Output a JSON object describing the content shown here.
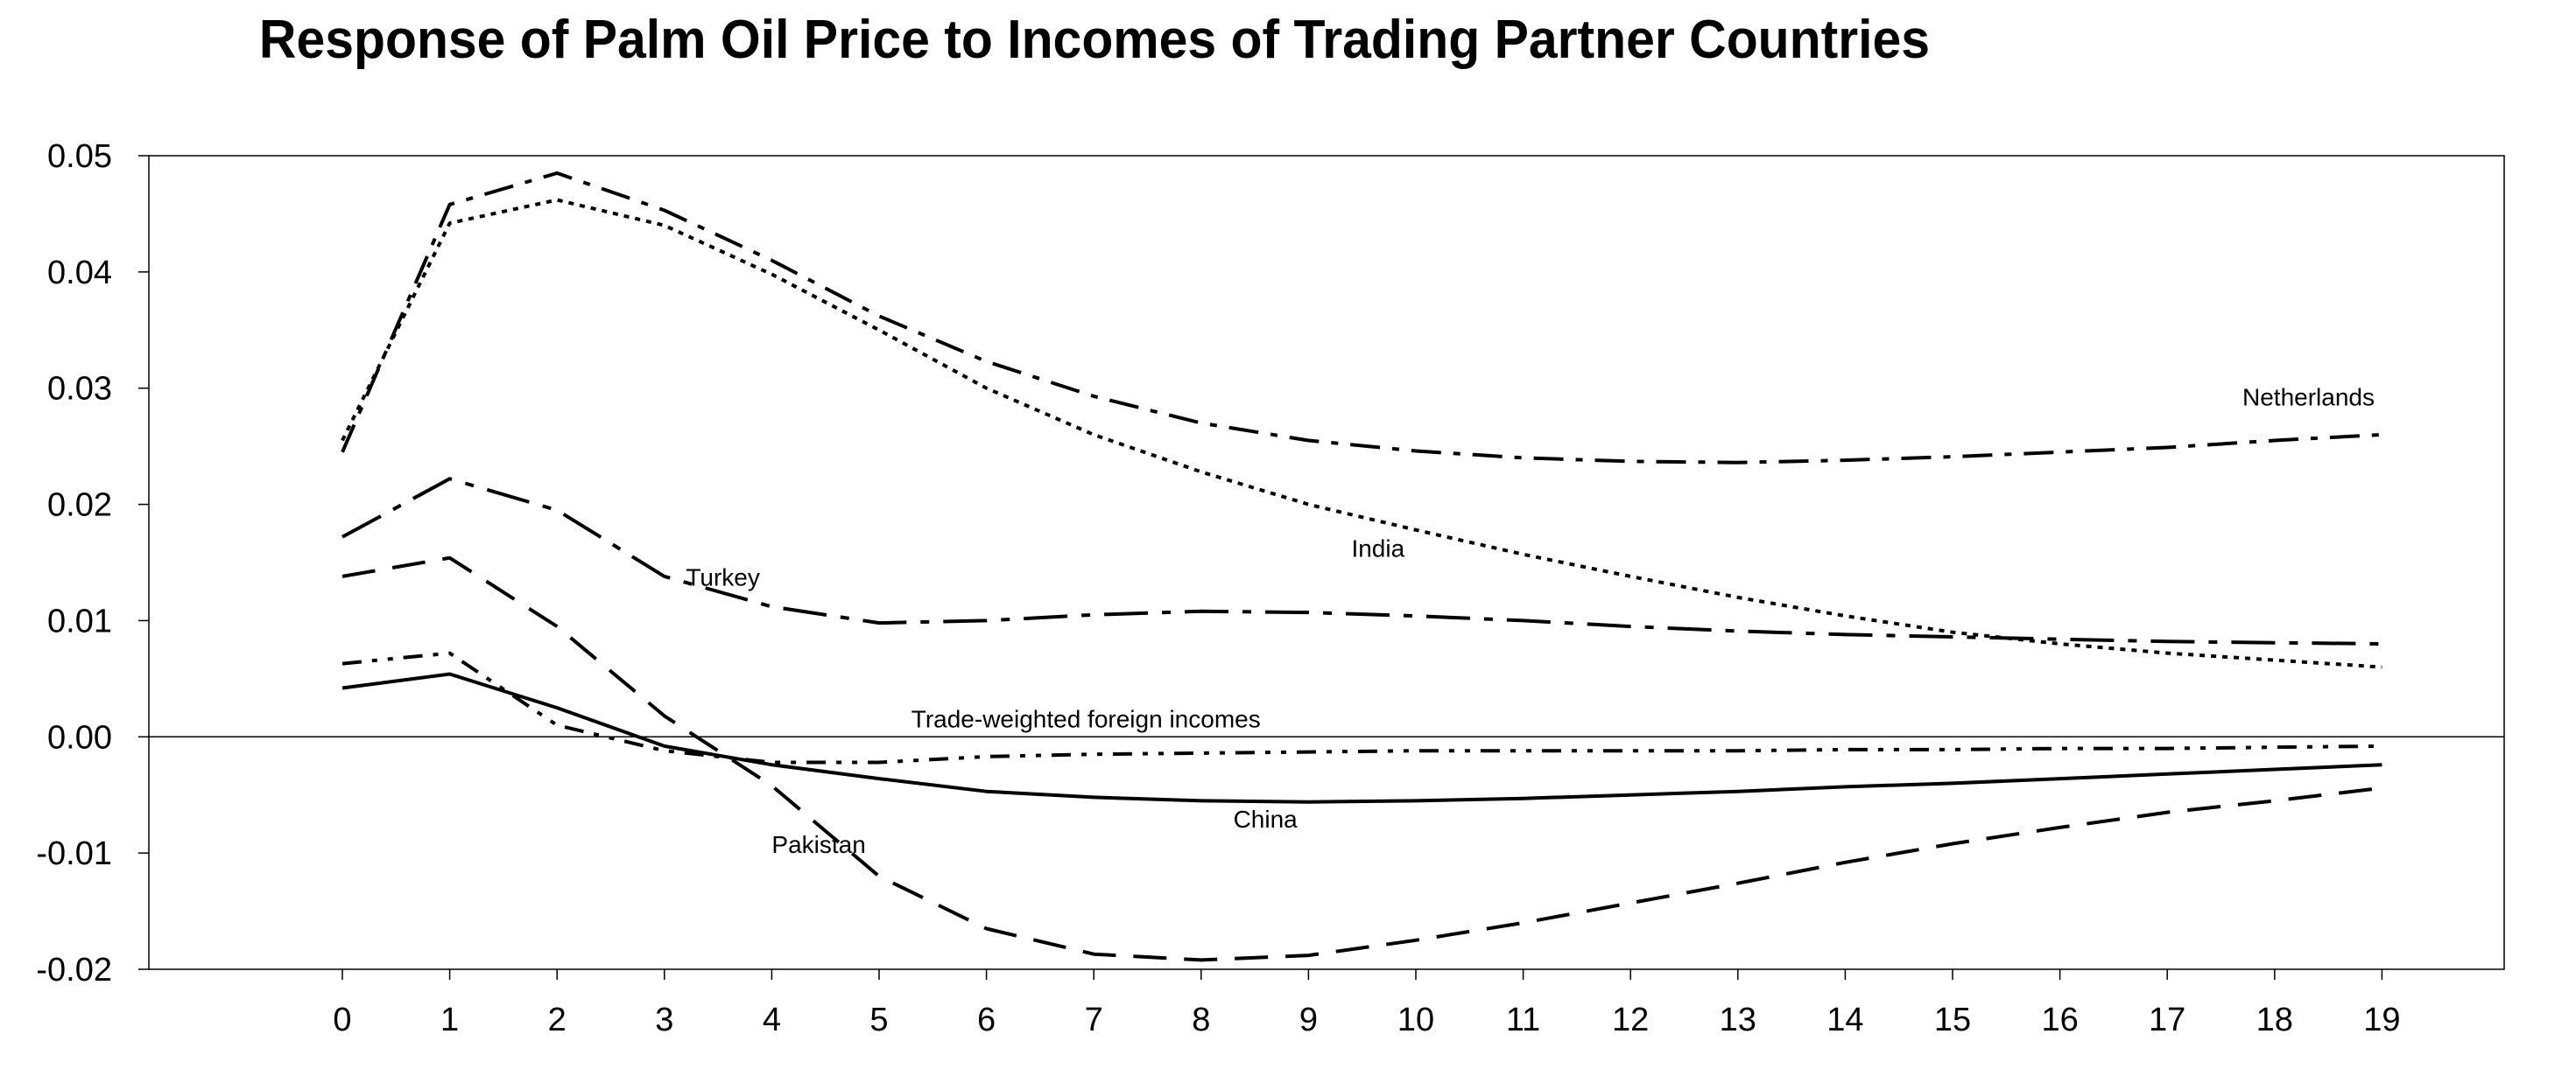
{
  "chart_data": {
    "type": "line",
    "title": "Response of Palm Oil Price to Incomes of Trading Partner Countries",
    "xlabel": "",
    "ylabel": "",
    "x": [
      0,
      1,
      2,
      3,
      4,
      5,
      6,
      7,
      8,
      9,
      10,
      11,
      12,
      13,
      14,
      15,
      16,
      17,
      18,
      19
    ],
    "ylim": [
      -0.02,
      0.05
    ],
    "yticks": [
      0.05,
      0.04,
      0.03,
      0.02,
      0.01,
      0.0,
      -0.01,
      -0.02
    ],
    "ytick_labels": [
      "0.05",
      "0.04",
      "0.03",
      "0.02",
      "0.01",
      "0.00",
      "-0.01",
      "-0.02"
    ],
    "xtick_labels": [
      "0",
      "1",
      "2",
      "3",
      "4",
      "5",
      "6",
      "7",
      "8",
      "9",
      "10",
      "11",
      "12",
      "13",
      "14",
      "15",
      "16",
      "17",
      "18",
      "19"
    ],
    "grid": false,
    "zero_line": true,
    "series": [
      {
        "name": "Netherlands",
        "style": "dash-dot",
        "values": [
          0.0245,
          0.0458,
          0.0485,
          0.0453,
          0.041,
          0.0362,
          0.0323,
          0.0293,
          0.027,
          0.0255,
          0.0246,
          0.024,
          0.0237,
          0.0236,
          0.0238,
          0.0241,
          0.0245,
          0.0249,
          0.0255,
          0.026
        ]
      },
      {
        "name": "India",
        "style": "dotted",
        "values": [
          0.0255,
          0.0442,
          0.0462,
          0.044,
          0.0398,
          0.035,
          0.03,
          0.026,
          0.0228,
          0.02,
          0.0178,
          0.0157,
          0.0138,
          0.012,
          0.0104,
          0.009,
          0.008,
          0.0072,
          0.0066,
          0.006
        ]
      },
      {
        "name": "Turkey",
        "style": "long-dash-dot",
        "values": [
          0.0172,
          0.0222,
          0.0195,
          0.0138,
          0.0112,
          0.0098,
          0.01,
          0.0105,
          0.0108,
          0.0107,
          0.0104,
          0.01,
          0.0095,
          0.0091,
          0.0088,
          0.0086,
          0.0084,
          0.0082,
          0.0081,
          0.008
        ]
      },
      {
        "name": "Pakistan",
        "style": "dashed",
        "values": [
          0.0138,
          0.0154,
          0.0095,
          0.0018,
          -0.0042,
          -0.012,
          -0.0165,
          -0.0187,
          -0.0192,
          -0.0188,
          -0.0175,
          -0.016,
          -0.0143,
          -0.0126,
          -0.0108,
          -0.0092,
          -0.0078,
          -0.0065,
          -0.0055,
          -0.0044
        ]
      },
      {
        "name": "Trade-weighted foreign incomes",
        "style": "dash-dot-dot",
        "values": [
          0.0063,
          0.0072,
          0.001,
          -0.0012,
          -0.0022,
          -0.0022,
          -0.0017,
          -0.0015,
          -0.0014,
          -0.0013,
          -0.0012,
          -0.0012,
          -0.0012,
          -0.0012,
          -0.0011,
          -0.0011,
          -0.001,
          -0.001,
          -0.0009,
          -0.0008
        ]
      },
      {
        "name": "China",
        "style": "solid",
        "values": [
          0.0042,
          0.0054,
          0.0025,
          -0.0008,
          -0.0024,
          -0.0036,
          -0.0047,
          -0.0052,
          -0.0055,
          -0.0056,
          -0.0055,
          -0.0053,
          -0.005,
          -0.0047,
          -0.0043,
          -0.004,
          -0.0036,
          -0.0032,
          -0.0028,
          -0.0024
        ]
      }
    ],
    "annotations": [
      {
        "text": "Netherlands",
        "series": "Netherlands",
        "at_x": 17.7,
        "at_y": 0.0285
      },
      {
        "text": "India",
        "series": "India",
        "at_x": 9.4,
        "at_y": 0.0155
      },
      {
        "text": "Turkey",
        "series": "Turkey",
        "at_x": 3.2,
        "at_y": 0.013
      },
      {
        "text": "Trade-weighted foreign incomes",
        "series": "Trade-weighted foreign incomes",
        "at_x": 5.3,
        "at_y": 0.0008
      },
      {
        "text": "China",
        "series": "China",
        "at_x": 8.3,
        "at_y": -0.0078
      },
      {
        "text": "Pakistan",
        "series": "Pakistan",
        "at_x": 4.0,
        "at_y": -0.01
      }
    ]
  }
}
